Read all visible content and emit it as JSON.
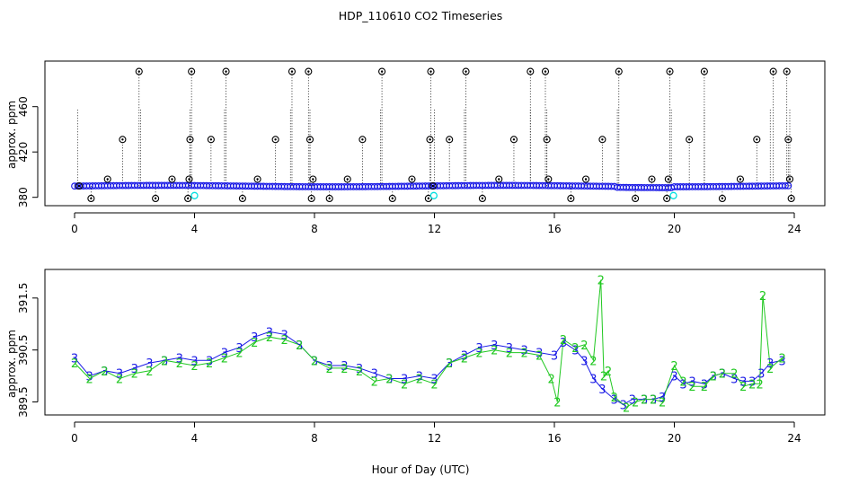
{
  "title": "HDP_110610  CO2 Timeseries",
  "xlabel": "Hour of Day (UTC)",
  "colors": {
    "blue": "#1a1ae6",
    "cyan": "#00e0e0",
    "green": "#20c820",
    "black": "#000000"
  },
  "chart_data": [
    {
      "type": "scatter",
      "panel": "top",
      "ylabel": "approx. ppm",
      "xlim": [
        0,
        24
      ],
      "ylim": [
        375,
        497
      ],
      "xticks": [
        "0",
        "4",
        "8",
        "12",
        "16",
        "20",
        "24"
      ],
      "yticks": [
        "380",
        "420",
        "460"
      ],
      "baseline_ppm": 389.9,
      "black_circles": {
        "x": [
          0.15,
          0.55,
          1.1,
          1.6,
          2.15,
          2.7,
          3.25,
          3.78,
          3.82,
          3.85,
          3.9,
          4.55,
          5.05,
          5.6,
          6.1,
          6.7,
          7.25,
          7.8,
          7.85,
          7.9,
          7.95,
          8.5,
          9.1,
          9.6,
          10.25,
          10.6,
          11.25,
          11.8,
          11.85,
          11.88,
          11.95,
          12.5,
          13.05,
          13.6,
          14.15,
          14.65,
          15.2,
          15.7,
          15.75,
          15.8,
          16.55,
          17.05,
          17.6,
          18.15,
          18.7,
          19.25,
          19.75,
          19.8,
          19.85,
          20.5,
          21.0,
          21.6,
          22.2,
          22.75,
          23.3,
          23.75,
          23.8,
          23.85,
          23.9
        ],
        "y": [
          390,
          379,
          396,
          431,
          491,
          379,
          396,
          379,
          396,
          431,
          491,
          431,
          491,
          379,
          396,
          431,
          491,
          491,
          431,
          379,
          396,
          379,
          396,
          431,
          491,
          379,
          396,
          379,
          431,
          491,
          390,
          431,
          491,
          379,
          396,
          431,
          491,
          491,
          431,
          396,
          379,
          396,
          431,
          491,
          379,
          396,
          379,
          396,
          491,
          431,
          491,
          379,
          396,
          431,
          491,
          491,
          431,
          396,
          379
        ]
      },
      "cyan_circles": {
        "x": [
          4.0,
          11.98,
          19.97
        ],
        "y": [
          381.5,
          381.5,
          381.5
        ]
      },
      "dotted_spike_x": [
        0.1,
        2.2,
        3.85,
        5.0,
        7.2,
        7.85,
        10.2,
        12.0,
        13.0,
        15.2,
        15.75,
        18.1,
        19.9,
        21.0,
        23.2,
        23.85
      ]
    },
    {
      "type": "scatter",
      "panel": "bottom",
      "ylabel": "approx. ppm",
      "xlim": [
        0,
        24
      ],
      "ylim": [
        389.25,
        392.05
      ],
      "xticks": [
        "0",
        "4",
        "8",
        "12",
        "16",
        "20",
        "24"
      ],
      "yticks": [
        "389.5",
        "390.5",
        "391.5"
      ],
      "series": [
        {
          "name": "3",
          "x": [
            0,
            0.5,
            1,
            1.5,
            2,
            2.5,
            3,
            3.5,
            4,
            4.5,
            5,
            5.5,
            6,
            6.5,
            7,
            7.5,
            8,
            8.5,
            9,
            9.5,
            10,
            10.5,
            11,
            11.5,
            12,
            12.5,
            13,
            13.5,
            14,
            14.5,
            15,
            15.5,
            16,
            16.3,
            16.7,
            17,
            17.3,
            17.6,
            18,
            18.3,
            18.6,
            19,
            19.3,
            19.6,
            20,
            20.3,
            20.6,
            21,
            21.3,
            21.6,
            22,
            22.3,
            22.6,
            22.9,
            23.2,
            23.6
          ],
          "y": [
            390.35,
            390.0,
            390.1,
            390.05,
            390.15,
            390.25,
            390.3,
            390.35,
            390.3,
            390.3,
            390.45,
            390.55,
            390.75,
            390.85,
            390.8,
            390.6,
            390.3,
            390.2,
            390.2,
            390.15,
            390.05,
            389.95,
            389.95,
            390.0,
            389.95,
            390.25,
            390.4,
            390.55,
            390.6,
            390.55,
            390.5,
            390.45,
            390.4,
            390.65,
            390.5,
            390.3,
            389.95,
            389.75,
            389.55,
            389.45,
            389.55,
            389.55,
            389.55,
            389.6,
            390.0,
            389.85,
            389.9,
            389.85,
            390.0,
            390.05,
            389.95,
            389.9,
            389.9,
            390.05,
            390.25,
            390.3
          ]
        },
        {
          "name": "2",
          "x": [
            0,
            0.5,
            1,
            1.5,
            2,
            2.5,
            3,
            3.5,
            4,
            4.5,
            5,
            5.5,
            6,
            6.5,
            7,
            7.5,
            8,
            8.5,
            9,
            9.5,
            10,
            10.5,
            11,
            11.5,
            12,
            12.5,
            13,
            13.5,
            14,
            14.5,
            15,
            15.5,
            15.9,
            16.1,
            16.3,
            16.7,
            17,
            17.3,
            17.55,
            17.65,
            17.8,
            18,
            18.4,
            18.7,
            19,
            19.3,
            19.6,
            20,
            20.3,
            20.6,
            21,
            21.3,
            21.6,
            22,
            22.3,
            22.6,
            22.85,
            22.95,
            23.2,
            23.6
          ],
          "y": [
            390.25,
            389.95,
            390.1,
            389.95,
            390.05,
            390.1,
            390.3,
            390.25,
            390.2,
            390.25,
            390.35,
            390.45,
            390.65,
            390.75,
            390.7,
            390.6,
            390.3,
            390.15,
            390.15,
            390.1,
            389.9,
            389.95,
            389.85,
            389.95,
            389.85,
            390.25,
            390.35,
            390.45,
            390.5,
            390.45,
            390.45,
            390.4,
            389.95,
            389.5,
            390.7,
            390.55,
            390.6,
            390.3,
            391.85,
            390.0,
            390.1,
            389.6,
            389.4,
            389.5,
            389.55,
            389.55,
            389.5,
            390.2,
            389.9,
            389.8,
            389.8,
            390.0,
            390.05,
            390.05,
            389.8,
            389.85,
            389.85,
            391.55,
            390.15,
            390.35
          ]
        }
      ]
    }
  ]
}
